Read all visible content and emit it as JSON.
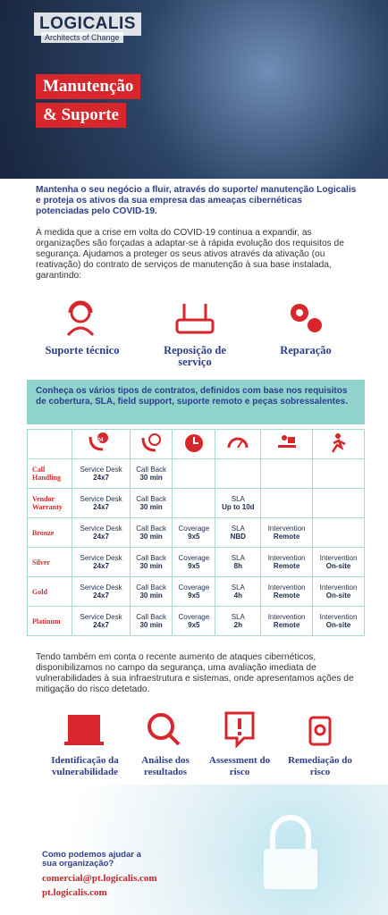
{
  "header": {
    "logo": "LOGICALIS",
    "tagline": "Architects of Change",
    "title_lines": [
      "Manutenção",
      "& Suporte"
    ]
  },
  "intro": {
    "lead": "Mantenha o seu negócio a fluir, através do suporte/ manutenção Logicalis e proteja os ativos da sua empresa das ameaças cibernéticas potenciadas pelo COVID-19.",
    "body": "À medida que a crise em volta do COVID-19 continua a expandir, as organizações são forçadas a adaptar-se à rápida evolução dos requisitos de segurança. Ajudamos a proteger os seus ativos através da ativação (ou reativação) do contrato de serviços de manutenção à sua base instalada, garantindo:"
  },
  "services": [
    "Suporte técnico",
    "Reposição de serviço",
    "Reparação"
  ],
  "table": {
    "banner": "Conheça os vários tipos de contratos, definidos com base nos requisitos de cobertura, SLA, field support, suporte remoto e peças sobressalentes.",
    "header_badge": "24",
    "rows": [
      {
        "name": "Call Handling",
        "cells": [
          [
            "Service Desk",
            "24x7"
          ],
          [
            "Call Back",
            "30 min"
          ],
          null,
          null,
          null,
          null
        ]
      },
      {
        "name": "Vendor Warranty",
        "cells": [
          [
            "Service Desk",
            "24x7"
          ],
          [
            "Call Back",
            "30 min"
          ],
          null,
          [
            "SLA",
            "Up to 10d"
          ],
          null,
          null
        ]
      },
      {
        "name": "Bronze",
        "cells": [
          [
            "Service Desk",
            "24x7"
          ],
          [
            "Call Back",
            "30 min"
          ],
          [
            "Coverage",
            "9x5"
          ],
          [
            "SLA",
            "NBD"
          ],
          [
            "Intervention",
            "Remote"
          ],
          null
        ]
      },
      {
        "name": "Silver",
        "cells": [
          [
            "Service Desk",
            "24x7"
          ],
          [
            "Call Back",
            "30 min"
          ],
          [
            "Coverage",
            "9x5"
          ],
          [
            "SLA",
            "8h"
          ],
          [
            "Intervention",
            "Remote"
          ],
          [
            "Intervention",
            "On-site"
          ]
        ]
      },
      {
        "name": "Gold",
        "cells": [
          [
            "Service Desk",
            "24x7"
          ],
          [
            "Call Back",
            "30 min"
          ],
          [
            "Coverage",
            "9x5"
          ],
          [
            "SLA",
            "4h"
          ],
          [
            "Intervention",
            "Remote"
          ],
          [
            "Intervention",
            "On-site"
          ]
        ]
      },
      {
        "name": "Platinum",
        "cells": [
          [
            "Service Desk",
            "24x7"
          ],
          [
            "Call Back",
            "30 min"
          ],
          [
            "Coverage",
            "9x5"
          ],
          [
            "SLA",
            "2h"
          ],
          [
            "Intervention",
            "Remote"
          ],
          [
            "Intervention",
            "On-site"
          ]
        ]
      }
    ]
  },
  "security": {
    "body": "Tendo também em conta o recente aumento de ataques cibernéticos, disponibilizamos no campo da segurança, uma avaliação imediata de vulnerabilidades à sua infraestrutura e sistemas, onde apresentamos ações de mitigação do risco detetado.",
    "items": [
      "Identificação da vulnerabilidade",
      "Análise dos resultados",
      "Assessment do risco",
      "Remediação do risco"
    ]
  },
  "contact": {
    "question": "Como podemos ajudar a sua organização?",
    "email": "comercial@pt.logicalis.com",
    "url": "pt.logicalis.com"
  }
}
